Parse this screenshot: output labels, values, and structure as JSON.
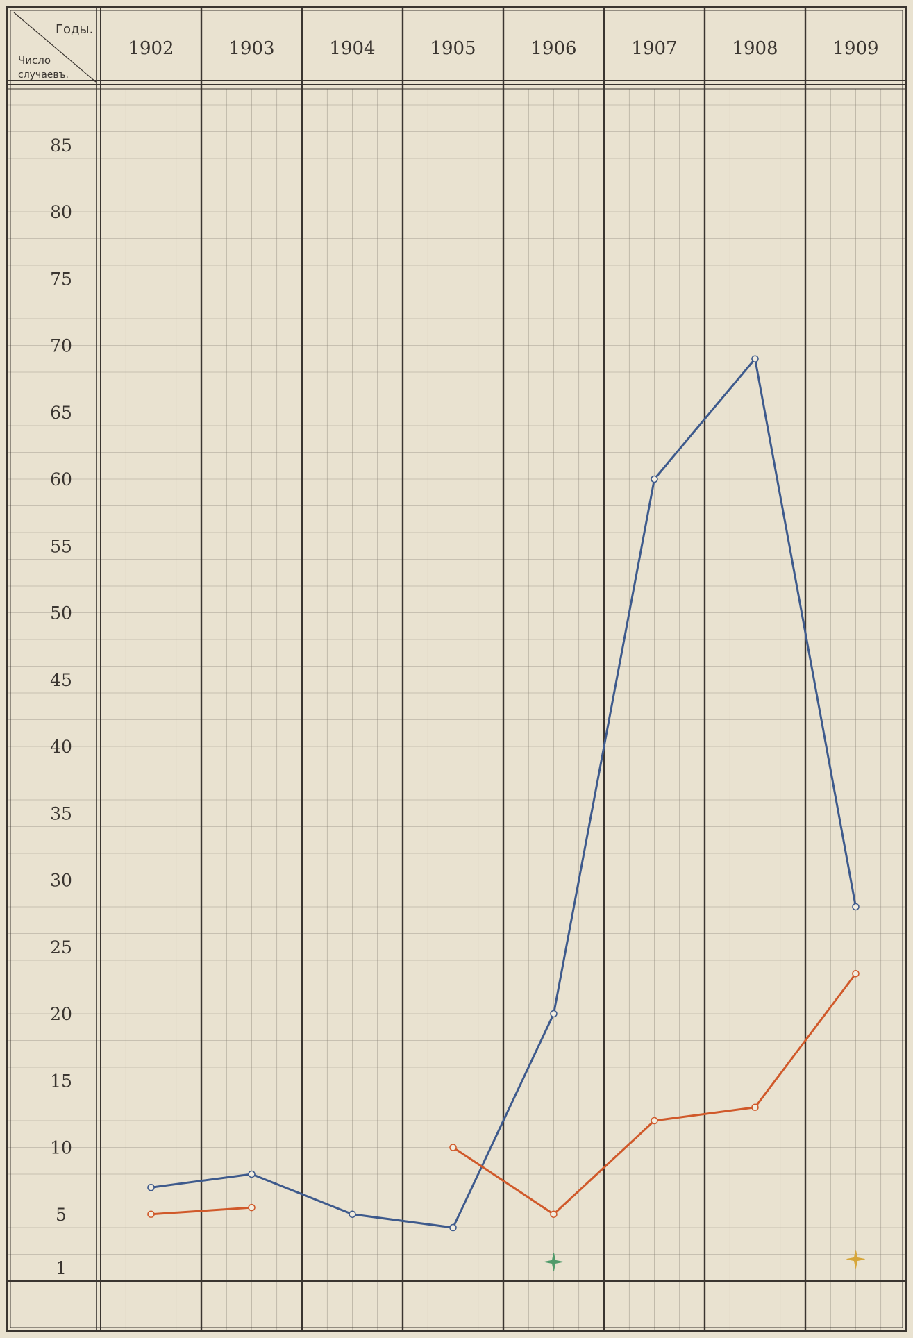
{
  "header": {
    "years_label": "Годы.",
    "count_label_line1": "Число",
    "count_label_line2": "случаевъ."
  },
  "chart_data": {
    "type": "line",
    "title": "",
    "xlabel": "Годы.",
    "ylabel": "Число случаевъ.",
    "x": [
      1902,
      1903,
      1904,
      1905,
      1906,
      1907,
      1908,
      1909
    ],
    "categories": [
      "1902",
      "1903",
      "1904",
      "1905",
      "1906",
      "1907",
      "1908",
      "1909"
    ],
    "y_ticks": [
      1,
      5,
      10,
      15,
      20,
      25,
      30,
      35,
      40,
      45,
      50,
      55,
      60,
      65,
      70,
      75,
      80,
      85
    ],
    "ylim": [
      0,
      88
    ],
    "grid": true,
    "series": [
      {
        "color": "#3e5a8c",
        "segments": [
          [
            [
              1902,
              7
            ],
            [
              1903,
              8
            ],
            [
              1904,
              5
            ],
            [
              1905,
              4
            ],
            [
              1906,
              20
            ],
            [
              1907,
              60
            ],
            [
              1908,
              69
            ],
            [
              1909,
              28
            ]
          ]
        ]
      },
      {
        "color": "#d0592a",
        "segments": [
          [
            [
              1902,
              5
            ],
            [
              1903,
              5.5
            ]
          ],
          [
            [
              1905,
              10
            ],
            [
              1906,
              5
            ],
            [
              1907,
              12
            ],
            [
              1908,
              13
            ],
            [
              1909,
              23
            ]
          ]
        ]
      }
    ],
    "markers": [
      {
        "x": 1906,
        "y": 0.5,
        "color": "#4f9a6a",
        "symbol": "star"
      },
      {
        "x": 1909,
        "y": 0.7,
        "color": "#d6a63a",
        "symbol": "star"
      }
    ]
  }
}
